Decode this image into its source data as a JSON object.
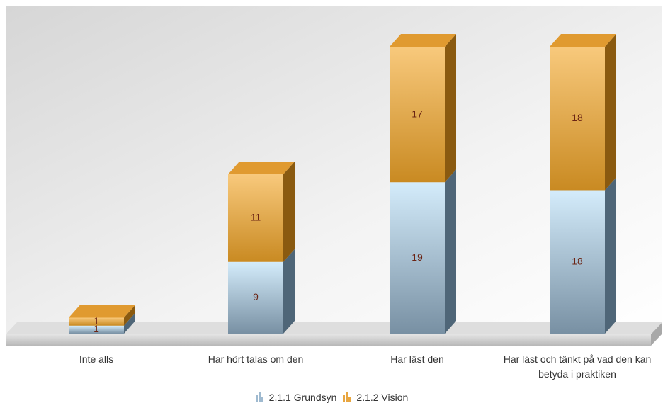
{
  "chart_data": {
    "type": "bar",
    "stacked": true,
    "categories": [
      "Inte alls",
      "Har hört talas om den",
      "Har läst den",
      "Har läst och tänkt på vad den kan betyda i praktiken"
    ],
    "series": [
      {
        "name": "2.1.1 Grundsyn",
        "color": "#9fbad0",
        "values": [
          1,
          9,
          19,
          18
        ]
      },
      {
        "name": "2.1.2 Vision",
        "color": "#e8a640",
        "values": [
          1,
          11,
          17,
          18
        ]
      }
    ],
    "legend": "bottom"
  }
}
